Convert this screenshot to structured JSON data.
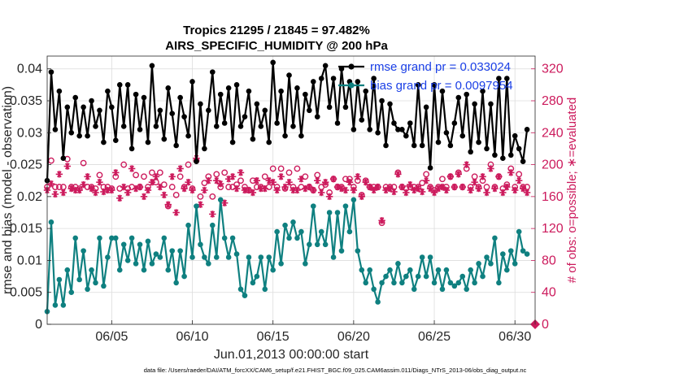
{
  "chart_data": {
    "type": "line",
    "title_line1": "Tropics 21295 / 21845 = 97.482%",
    "title_line2": "AIRS_SPECIFIC_HUMIDITY @ 200 hPa",
    "xlabel": "Jun.01,2013 00:00:00 start",
    "ylabel_left": "rmse and bias (model - observation)",
    "ylabel_right": "# of obs: o=possible; ∗=evaluated",
    "xlim": [
      1.0,
      31.25
    ],
    "ylim_left": [
      0,
      0.042
    ],
    "ylim_right": [
      0,
      336
    ],
    "x_ticks": [
      {
        "value": 5,
        "label": "06/05"
      },
      {
        "value": 10,
        "label": "06/10"
      },
      {
        "value": 15,
        "label": "06/15"
      },
      {
        "value": 20,
        "label": "06/20"
      },
      {
        "value": 25,
        "label": "06/25"
      },
      {
        "value": 30,
        "label": "06/30"
      }
    ],
    "y_ticks_left": [
      {
        "value": 0,
        "label": "0"
      },
      {
        "value": 0.005,
        "label": "0.005"
      },
      {
        "value": 0.01,
        "label": "0.01"
      },
      {
        "value": 0.015,
        "label": "0.015"
      },
      {
        "value": 0.02,
        "label": "0.02"
      },
      {
        "value": 0.025,
        "label": "0.025"
      },
      {
        "value": 0.03,
        "label": "0.03"
      },
      {
        "value": 0.035,
        "label": "0.035"
      },
      {
        "value": 0.04,
        "label": "0.04"
      }
    ],
    "y_ticks_right": [
      {
        "value": 0,
        "label": "0"
      },
      {
        "value": 40,
        "label": "40"
      },
      {
        "value": 80,
        "label": "80"
      },
      {
        "value": 120,
        "label": "120"
      },
      {
        "value": 160,
        "label": "160"
      },
      {
        "value": 200,
        "label": "200"
      },
      {
        "value": 240,
        "label": "240"
      },
      {
        "value": 280,
        "label": "280"
      },
      {
        "value": 320,
        "label": "320"
      }
    ],
    "legend": [
      {
        "label": "rmse grand pr = 0.033024",
        "series": "rmse"
      },
      {
        "label": "bias grand pr = 0.0097954",
        "series": "bias"
      }
    ],
    "legend_position": "top-right",
    "footer": "data file: /Users/raeder/DAI/ATM_forcXX/CAM6_setup/f.e21.FHIST_BGC.f09_025.CAM6assim.011/Diags_NTrS_2013-06/obs_diag_output.nc",
    "colors": {
      "rmse": "#000000",
      "bias": "#0f8080",
      "obs": "#cc1a5c",
      "legend_text": "#1a3fe6"
    },
    "x": [
      1.0,
      1.25,
      1.5,
      1.75,
      2.0,
      2.25,
      2.5,
      2.75,
      3.0,
      3.25,
      3.5,
      3.75,
      4.0,
      4.25,
      4.5,
      4.75,
      5.0,
      5.25,
      5.5,
      5.75,
      6.0,
      6.25,
      6.5,
      6.75,
      7.0,
      7.25,
      7.5,
      7.75,
      8.0,
      8.25,
      8.5,
      8.75,
      9.0,
      9.25,
      9.5,
      9.75,
      10.0,
      10.25,
      10.5,
      10.75,
      11.0,
      11.25,
      11.5,
      11.75,
      12.0,
      12.25,
      12.5,
      12.75,
      13.0,
      13.25,
      13.5,
      13.75,
      14.0,
      14.25,
      14.5,
      14.75,
      15.0,
      15.25,
      15.5,
      15.75,
      16.0,
      16.25,
      16.5,
      16.75,
      17.0,
      17.25,
      17.5,
      17.75,
      18.0,
      18.25,
      18.5,
      18.75,
      19.0,
      19.25,
      19.5,
      19.75,
      20.0,
      20.25,
      20.5,
      20.75,
      21.0,
      21.25,
      21.5,
      21.75,
      22.0,
      22.25,
      22.5,
      22.75,
      23.0,
      23.25,
      23.5,
      23.75,
      24.0,
      24.25,
      24.5,
      24.75,
      25.0,
      25.25,
      25.5,
      25.75,
      26.0,
      26.25,
      26.5,
      26.75,
      27.0,
      27.25,
      27.5,
      27.75,
      28.0,
      28.25,
      28.5,
      28.75,
      29.0,
      29.25,
      29.5,
      29.75,
      30.0,
      30.25,
      30.5,
      30.75
    ],
    "series": [
      {
        "name": "rmse",
        "axis": "left",
        "values": [
          0.0225,
          0.0395,
          0.0305,
          0.0365,
          0.026,
          0.034,
          0.03,
          0.0355,
          0.0295,
          0.034,
          0.0295,
          0.035,
          0.031,
          0.0335,
          0.0285,
          0.0365,
          0.034,
          0.0288,
          0.0375,
          0.031,
          0.0375,
          0.0275,
          0.036,
          0.0305,
          0.0355,
          0.0285,
          0.0405,
          0.031,
          0.0335,
          0.029,
          0.037,
          0.033,
          0.028,
          0.0355,
          0.0325,
          0.0295,
          0.038,
          0.0255,
          0.0345,
          0.0275,
          0.0335,
          0.0395,
          0.031,
          0.036,
          0.0315,
          0.037,
          0.0285,
          0.0375,
          0.031,
          0.0325,
          0.0365,
          0.029,
          0.0345,
          0.031,
          0.0335,
          0.0285,
          0.041,
          0.0315,
          0.0365,
          0.0295,
          0.039,
          0.031,
          0.037,
          0.0295,
          0.036,
          0.0335,
          0.038,
          0.0325,
          0.0385,
          0.0405,
          0.034,
          0.0385,
          0.0315,
          0.04,
          0.034,
          0.038,
          0.0305,
          0.038,
          0.032,
          0.0365,
          0.0305,
          0.0385,
          0.03,
          0.035,
          0.028,
          0.0345,
          0.0315,
          0.0305,
          0.0305,
          0.0295,
          0.0315,
          0.028,
          0.0375,
          0.028,
          0.034,
          0.0245,
          0.0375,
          0.0285,
          0.0365,
          0.03,
          0.028,
          0.0315,
          0.0355,
          0.0295,
          0.036,
          0.027,
          0.0345,
          0.0285,
          0.0365,
          0.0275,
          0.0345,
          0.0265,
          0.0385,
          0.026,
          0.0385,
          0.0265,
          0.0295,
          0.0275,
          0.0255,
          0.0305
        ]
      },
      {
        "name": "bias",
        "axis": "left",
        "values": [
          0.002,
          0.016,
          0.003,
          0.007,
          0.003,
          0.0085,
          0.005,
          0.0135,
          0.007,
          0.0115,
          0.0055,
          0.0085,
          0.0065,
          0.0135,
          0.006,
          0.0105,
          0.0135,
          0.0135,
          0.0085,
          0.0125,
          0.01,
          0.0135,
          0.0095,
          0.0125,
          0.0085,
          0.013,
          0.0095,
          0.011,
          0.0105,
          0.0135,
          0.0085,
          0.0115,
          0.0065,
          0.0115,
          0.0075,
          0.0155,
          0.0105,
          0.0185,
          0.0125,
          0.0105,
          0.0095,
          0.0155,
          0.0105,
          0.0195,
          0.0135,
          0.0105,
          0.0135,
          0.011,
          0.0055,
          0.0045,
          0.0105,
          0.0065,
          0.0075,
          0.0105,
          0.0055,
          0.0105,
          0.0085,
          0.0145,
          0.0095,
          0.0155,
          0.0135,
          0.016,
          0.0135,
          0.0145,
          0.0095,
          0.0125,
          0.0185,
          0.0125,
          0.0145,
          0.0125,
          0.0175,
          0.0105,
          0.0175,
          0.0115,
          0.0185,
          0.0145,
          0.0195,
          0.0115,
          0.0085,
          0.0065,
          0.0085,
          0.0055,
          0.0035,
          0.0065,
          0.0075,
          0.0085,
          0.0065,
          0.0095,
          0.0065,
          0.0075,
          0.0085,
          0.0055,
          0.0075,
          0.0105,
          0.0075,
          0.0105,
          0.0065,
          0.0085,
          0.0055,
          0.0085,
          0.0065,
          0.006,
          0.0065,
          0.0075,
          0.0055,
          0.0085,
          0.0065,
          0.0095,
          0.0075,
          0.0105,
          0.0095,
          0.0135,
          0.0065,
          0.011,
          0.0085,
          0.0115,
          0.0095,
          0.0145,
          0.0115,
          0.011
        ]
      },
      {
        "name": "obs_possible",
        "axis": "right",
        "marker": "o",
        "values": [
          172,
          205,
          172,
          172,
          172,
          207,
          172,
          172,
          170,
          202,
          172,
          172,
          170,
          187,
          172,
          172,
          170,
          185,
          170,
          200,
          170,
          172,
          187,
          172,
          185,
          172,
          190,
          178,
          190,
          175,
          148,
          172,
          162,
          185,
          172,
          200,
          170,
          205,
          160,
          177,
          185,
          160,
          188,
          172,
          190,
          172,
          172,
          175,
          180,
          172,
          168,
          180,
          172,
          172,
          185,
          172,
          195,
          172,
          195,
          170,
          190,
          172,
          195,
          172,
          185,
          172,
          168,
          187,
          172,
          175,
          165,
          182,
          172,
          172,
          182,
          182,
          172,
          180,
          162,
          180,
          172,
          172,
          172,
          127,
          172,
          172,
          172,
          190,
          172,
          170,
          172,
          172,
          172,
          177,
          188,
          172,
          168,
          172,
          182,
          172,
          185,
          172,
          190,
          172,
          195,
          172,
          185,
          172,
          180,
          172,
          200,
          172,
          185,
          170,
          175,
          195,
          172,
          188,
          172,
          172
        ]
      },
      {
        "name": "obs_evaluated",
        "axis": "right",
        "marker": "*",
        "values": [
          168,
          176,
          163,
          188,
          165,
          198,
          170,
          168,
          168,
          175,
          185,
          170,
          165,
          178,
          166,
          168,
          168,
          190,
          158,
          172,
          165,
          195,
          170,
          172,
          160,
          168,
          178,
          185,
          172,
          162,
          150,
          185,
          140,
          195,
          170,
          178,
          168,
          208,
          150,
          168,
          180,
          138,
          180,
          176,
          152,
          182,
          185,
          170,
          190,
          168,
          168,
          165,
          180,
          170,
          170,
          180,
          178,
          168,
          185,
          172,
          178,
          168,
          168,
          182,
          170,
          172,
          168,
          180,
          165,
          178,
          160,
          182,
          172,
          170,
          168,
          178,
          168,
          185,
          160,
          178,
          172,
          168,
          172,
          130,
          168,
          170,
          166,
          188,
          172,
          165,
          175,
          168,
          170,
          166,
          180,
          170,
          165,
          170,
          172,
          168,
          185,
          172,
          188,
          172,
          200,
          168,
          178,
          170,
          185,
          165,
          195,
          170,
          185,
          165,
          172,
          190,
          168,
          180,
          170,
          165
        ]
      }
    ]
  }
}
